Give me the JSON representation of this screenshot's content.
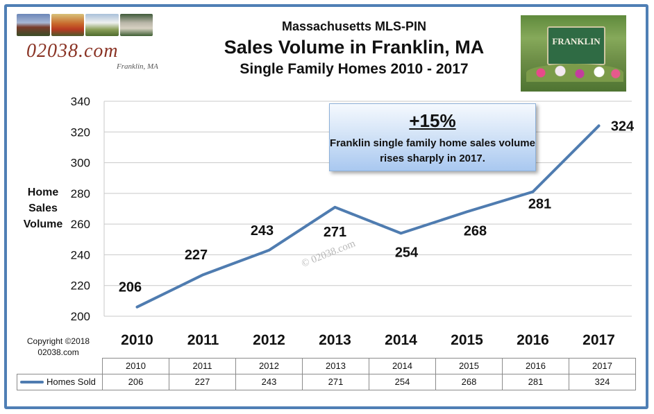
{
  "header": {
    "line1": "Massachusetts MLS-PIN",
    "line2": "Sales Volume in Franklin, MA",
    "line3": "Single Family Homes 2010 - 2017"
  },
  "logo": {
    "text": "02038.com",
    "subtext": "Franklin, MA"
  },
  "sign": {
    "text": "FRANKLIN"
  },
  "callout": {
    "big": "+15%",
    "text": "Franklin single family home sales volume rises sharply in 2017."
  },
  "watermark": "© 02038.com",
  "copyright": "Copyright ©2018\n02038.com",
  "colors": {
    "line": "#4f7cb0",
    "frame": "#4f7fb5",
    "grid": "#c8c8c8"
  },
  "chart_data": {
    "type": "line",
    "title": "Sales Volume in Franklin, MA",
    "ylabel": "Home\nSales\nVolume",
    "xlabel": "",
    "categories": [
      "2010",
      "2011",
      "2012",
      "2013",
      "2014",
      "2015",
      "2016",
      "2017"
    ],
    "series": [
      {
        "name": "Homes Sold",
        "values": [
          206,
          227,
          243,
          271,
          254,
          268,
          281,
          324
        ]
      }
    ],
    "ylim": [
      200,
      340
    ],
    "yticks": [
      "200",
      "220",
      "240",
      "260",
      "280",
      "300",
      "320",
      "340"
    ],
    "grid": true,
    "legend": "data-table"
  },
  "table": {
    "series_label": "Homes Sold",
    "years": [
      "2010",
      "2011",
      "2012",
      "2013",
      "2014",
      "2015",
      "2016",
      "2017"
    ],
    "values": [
      "206",
      "227",
      "243",
      "271",
      "254",
      "268",
      "281",
      "324"
    ]
  }
}
